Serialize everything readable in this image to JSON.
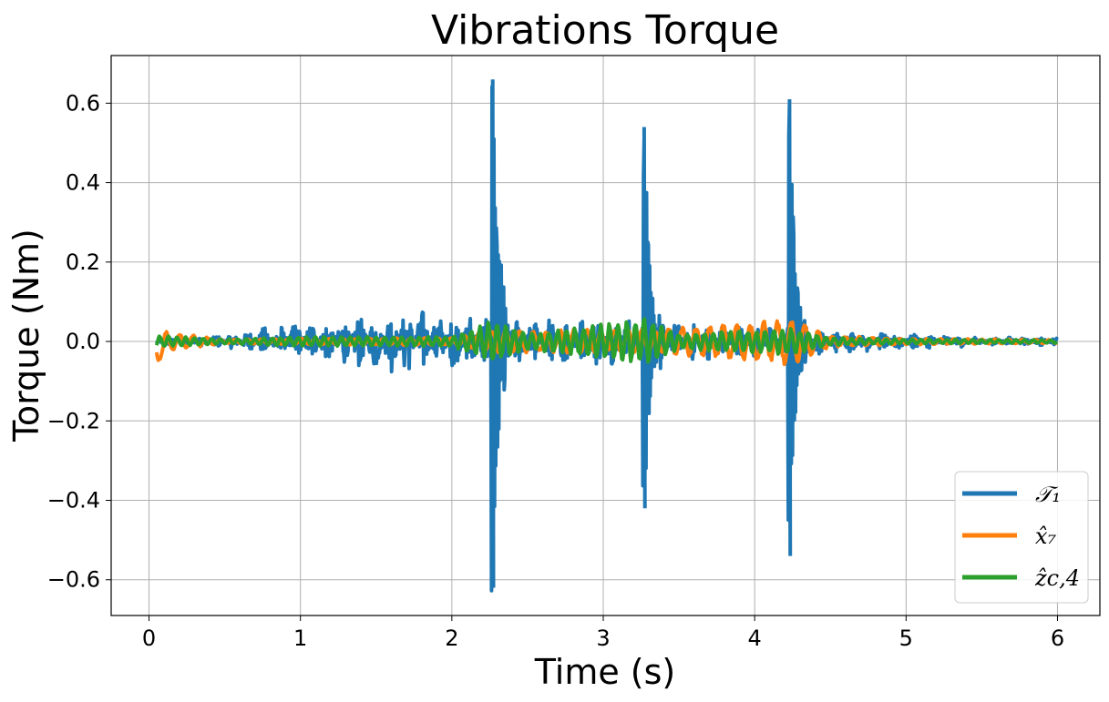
{
  "chart_data": {
    "type": "line",
    "title": "Vibrations Torque",
    "xlabel": "Time (s)",
    "ylabel": "Torque (Nm)",
    "xlim": [
      -0.25,
      6.28
    ],
    "ylim": [
      -0.69,
      0.72
    ],
    "xticks": [
      0,
      1,
      2,
      3,
      4,
      5,
      6
    ],
    "yticks": [
      -0.6,
      -0.4,
      -0.2,
      0.0,
      0.2,
      0.4,
      0.6
    ],
    "ytick_labels": [
      "−0.6",
      "−0.4",
      "−0.2",
      "0.0",
      "0.2",
      "0.4",
      "0.6"
    ],
    "grid": true,
    "legend_position": "lower-right",
    "impacts": [
      2.27,
      3.27,
      4.23
    ],
    "series": [
      {
        "name": "𝒯₁",
        "color": "#1f77b4",
        "envelope": {
          "x": [
            0.05,
            0.3,
            0.6,
            0.8,
            1.0,
            1.2,
            1.5,
            1.7,
            1.9,
            2.1,
            2.25
          ],
          "amp": [
            0.008,
            0.01,
            0.02,
            0.04,
            0.05,
            0.055,
            0.07,
            0.09,
            0.07,
            0.07,
            0.07
          ]
        },
        "spikes": [
          {
            "x": 2.27,
            "peak": 0.66,
            "trough": -0.62
          },
          {
            "x": 3.27,
            "peak": 0.54,
            "trough": -0.42
          },
          {
            "x": 4.23,
            "peak": 0.61,
            "trough": -0.54
          }
        ],
        "after_envelope": {
          "x": [
            2.4,
            3.0,
            3.5,
            4.0,
            4.5,
            5.0,
            5.5,
            6.0
          ],
          "amp": [
            0.06,
            0.06,
            0.05,
            0.04,
            0.03,
            0.02,
            0.012,
            0.01
          ]
        }
      },
      {
        "name": "x̂₇",
        "color": "#ff7f0e",
        "envelope": {
          "x": [
            0.05,
            0.5,
            1.0,
            2.0,
            2.3,
            3.3,
            4.25,
            4.5,
            5.0,
            6.0
          ],
          "amp": [
            0.03,
            0.005,
            0.008,
            0.01,
            0.03,
            0.03,
            0.06,
            0.015,
            0.008,
            0.005
          ]
        }
      },
      {
        "name": "ẑc,4",
        "color": "#2ca02c",
        "envelope": {
          "x": [
            0.05,
            0.5,
            1.0,
            2.0,
            2.27,
            2.5,
            3.27,
            3.5,
            4.25,
            4.5,
            5.0,
            6.0
          ],
          "amp": [
            0.015,
            0.006,
            0.012,
            0.012,
            0.055,
            0.02,
            0.06,
            0.02,
            0.035,
            0.01,
            0.006,
            0.004
          ]
        }
      }
    ]
  }
}
